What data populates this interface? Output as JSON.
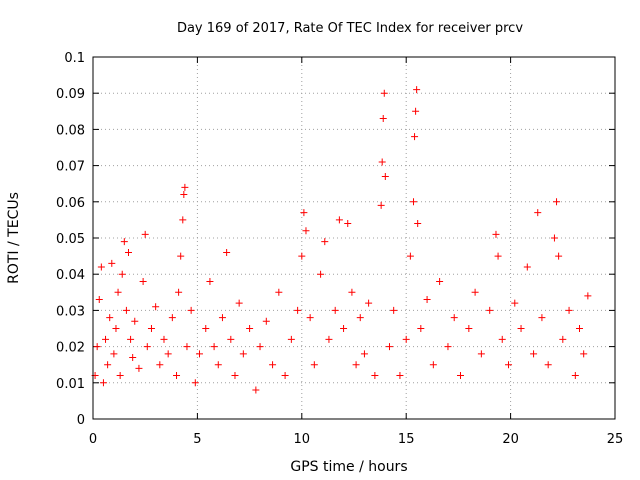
{
  "chart_data": {
    "type": "scatter",
    "title": "Day 169 of 2017, Rate Of TEC Index for receiver prcv",
    "xlabel": "GPS time / hours",
    "ylabel": "ROTI / TECUs",
    "xlim": [
      0,
      25
    ],
    "ylim": [
      0,
      0.1
    ],
    "x_ticks": [
      "0",
      "5",
      "10",
      "15",
      "20",
      "25"
    ],
    "y_ticks": [
      "0",
      "0.01",
      "0.02",
      "0.03",
      "0.04",
      "0.05",
      "0.06",
      "0.07",
      "0.08",
      "0.09",
      "0.1"
    ],
    "grid": true,
    "marker": "+",
    "color": "#ff0000",
    "series": [
      {
        "points": [
          [
            0.1,
            0.012
          ],
          [
            0.2,
            0.02
          ],
          [
            0.3,
            0.033
          ],
          [
            0.4,
            0.042
          ],
          [
            0.5,
            0.01
          ],
          [
            0.6,
            0.022
          ],
          [
            0.7,
            0.015
          ],
          [
            0.8,
            0.028
          ],
          [
            0.9,
            0.043
          ],
          [
            1.0,
            0.018
          ],
          [
            1.1,
            0.025
          ],
          [
            1.2,
            0.035
          ],
          [
            1.3,
            0.012
          ],
          [
            1.4,
            0.04
          ],
          [
            1.5,
            0.049
          ],
          [
            1.6,
            0.03
          ],
          [
            1.7,
            0.046
          ],
          [
            1.8,
            0.022
          ],
          [
            1.9,
            0.017
          ],
          [
            2.0,
            0.027
          ],
          [
            2.2,
            0.014
          ],
          [
            2.4,
            0.038
          ],
          [
            2.5,
            0.051
          ],
          [
            2.6,
            0.02
          ],
          [
            2.8,
            0.025
          ],
          [
            3.0,
            0.031
          ],
          [
            3.2,
            0.015
          ],
          [
            3.4,
            0.022
          ],
          [
            3.6,
            0.018
          ],
          [
            3.8,
            0.028
          ],
          [
            4.0,
            0.012
          ],
          [
            4.1,
            0.035
          ],
          [
            4.2,
            0.045
          ],
          [
            4.3,
            0.055
          ],
          [
            4.35,
            0.062
          ],
          [
            4.4,
            0.064
          ],
          [
            4.5,
            0.02
          ],
          [
            4.7,
            0.03
          ],
          [
            4.9,
            0.01
          ],
          [
            5.1,
            0.018
          ],
          [
            5.4,
            0.025
          ],
          [
            5.6,
            0.038
          ],
          [
            5.8,
            0.02
          ],
          [
            6.0,
            0.015
          ],
          [
            6.2,
            0.028
          ],
          [
            6.4,
            0.046
          ],
          [
            6.6,
            0.022
          ],
          [
            6.8,
            0.012
          ],
          [
            7.0,
            0.032
          ],
          [
            7.2,
            0.018
          ],
          [
            7.5,
            0.025
          ],
          [
            7.8,
            0.008
          ],
          [
            8.0,
            0.02
          ],
          [
            8.3,
            0.027
          ],
          [
            8.6,
            0.015
          ],
          [
            8.9,
            0.035
          ],
          [
            9.2,
            0.012
          ],
          [
            9.5,
            0.022
          ],
          [
            9.8,
            0.03
          ],
          [
            10.0,
            0.045
          ],
          [
            10.1,
            0.057
          ],
          [
            10.2,
            0.052
          ],
          [
            10.4,
            0.028
          ],
          [
            10.6,
            0.015
          ],
          [
            10.9,
            0.04
          ],
          [
            11.1,
            0.049
          ],
          [
            11.3,
            0.022
          ],
          [
            11.6,
            0.03
          ],
          [
            11.8,
            0.055
          ],
          [
            12.0,
            0.025
          ],
          [
            12.2,
            0.054
          ],
          [
            12.4,
            0.035
          ],
          [
            12.6,
            0.015
          ],
          [
            12.8,
            0.028
          ],
          [
            13.0,
            0.018
          ],
          [
            13.2,
            0.032
          ],
          [
            13.5,
            0.012
          ],
          [
            13.8,
            0.059
          ],
          [
            13.85,
            0.071
          ],
          [
            13.9,
            0.083
          ],
          [
            13.95,
            0.09
          ],
          [
            14.0,
            0.067
          ],
          [
            14.2,
            0.02
          ],
          [
            14.4,
            0.03
          ],
          [
            14.7,
            0.012
          ],
          [
            15.0,
            0.022
          ],
          [
            15.2,
            0.045
          ],
          [
            15.35,
            0.06
          ],
          [
            15.4,
            0.078
          ],
          [
            15.45,
            0.085
          ],
          [
            15.5,
            0.091
          ],
          [
            15.55,
            0.054
          ],
          [
            15.7,
            0.025
          ],
          [
            16.0,
            0.033
          ],
          [
            16.3,
            0.015
          ],
          [
            16.6,
            0.038
          ],
          [
            17.0,
            0.02
          ],
          [
            17.3,
            0.028
          ],
          [
            17.6,
            0.012
          ],
          [
            18.0,
            0.025
          ],
          [
            18.3,
            0.035
          ],
          [
            18.6,
            0.018
          ],
          [
            19.0,
            0.03
          ],
          [
            19.3,
            0.051
          ],
          [
            19.4,
            0.045
          ],
          [
            19.6,
            0.022
          ],
          [
            19.9,
            0.015
          ],
          [
            20.2,
            0.032
          ],
          [
            20.5,
            0.025
          ],
          [
            20.8,
            0.042
          ],
          [
            21.1,
            0.018
          ],
          [
            21.3,
            0.057
          ],
          [
            21.5,
            0.028
          ],
          [
            21.8,
            0.015
          ],
          [
            22.1,
            0.05
          ],
          [
            22.2,
            0.06
          ],
          [
            22.3,
            0.045
          ],
          [
            22.5,
            0.022
          ],
          [
            22.8,
            0.03
          ],
          [
            23.1,
            0.012
          ],
          [
            23.3,
            0.025
          ],
          [
            23.5,
            0.018
          ],
          [
            23.7,
            0.034
          ]
        ]
      }
    ]
  }
}
